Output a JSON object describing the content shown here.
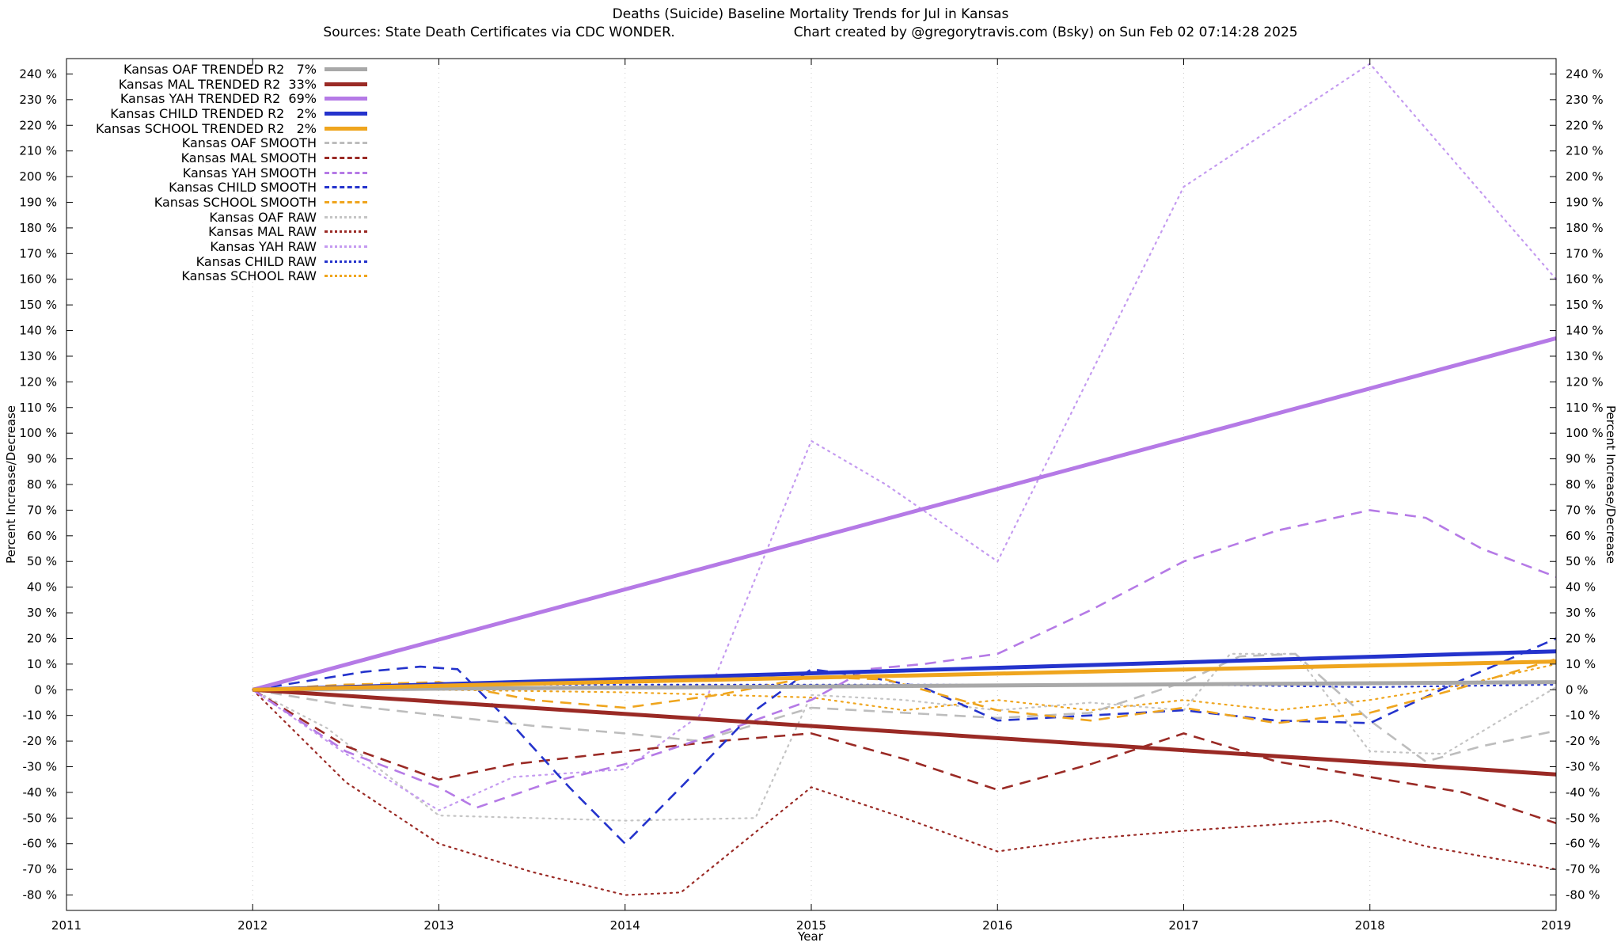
{
  "chart_data": {
    "type": "line",
    "title": "Deaths (Suicide)  Baseline Mortality Trends for Jul in Kansas",
    "subtitle_sources": "Sources: State Death Certificates via CDC WONDER.",
    "subtitle_credit": "Chart created by @gregorytravis.com (Bsky) on Sun Feb 02 07:14:28 2025",
    "xlabel": "Year",
    "ylabel": "Percent Increase/Decrease",
    "xlim": [
      2011,
      2019
    ],
    "ylim": [
      -86,
      246
    ],
    "xticks": [
      2011,
      2012,
      2013,
      2014,
      2015,
      2016,
      2017,
      2018,
      2019
    ],
    "yticks": [
      -80,
      -70,
      -60,
      -50,
      -40,
      -30,
      -20,
      -10,
      0,
      10,
      20,
      30,
      40,
      50,
      60,
      70,
      80,
      90,
      100,
      110,
      120,
      130,
      140,
      150,
      160,
      170,
      180,
      190,
      200,
      210,
      220,
      230,
      240
    ],
    "ytick_suffix": " %",
    "grid": "vertical-dotted",
    "legend_position": "top-left",
    "series": [
      {
        "name": "Kansas OAF TRENDED R2   7%",
        "group": "OAF",
        "role": "TRENDED",
        "color": "#a8a8a8",
        "points": [
          [
            2012,
            0
          ],
          [
            2019,
            3
          ]
        ]
      },
      {
        "name": "Kansas MAL TRENDED R2  33%",
        "group": "MAL",
        "role": "TRENDED",
        "color": "#9a2a25",
        "points": [
          [
            2012,
            0
          ],
          [
            2019,
            -33
          ]
        ]
      },
      {
        "name": "Kansas YAH TRENDED R2  69%",
        "group": "YAH",
        "role": "TRENDED",
        "color": "#b57ae6",
        "points": [
          [
            2012,
            0
          ],
          [
            2019,
            137
          ]
        ]
      },
      {
        "name": "Kansas CHILD TRENDED R2   2%",
        "group": "CHILD",
        "role": "TRENDED",
        "color": "#2433cc",
        "points": [
          [
            2012,
            0
          ],
          [
            2019,
            15
          ]
        ]
      },
      {
        "name": "Kansas SCHOOL TRENDED R2   2%",
        "group": "SCHOOL",
        "role": "TRENDED",
        "color": "#efa51e",
        "points": [
          [
            2012,
            0
          ],
          [
            2019,
            11
          ]
        ]
      },
      {
        "name": "Kansas OAF SMOOTH",
        "group": "OAF",
        "role": "SMOOTH",
        "color": "#bdbdbd",
        "points": [
          [
            2012,
            0
          ],
          [
            2012.5,
            -6
          ],
          [
            2013,
            -10
          ],
          [
            2013.5,
            -14
          ],
          [
            2014,
            -17
          ],
          [
            2014.4,
            -20
          ],
          [
            2015,
            -7
          ],
          [
            2015.5,
            -9
          ],
          [
            2016,
            -11
          ],
          [
            2016.5,
            -9
          ],
          [
            2017,
            3
          ],
          [
            2017.3,
            13
          ],
          [
            2017.6,
            14
          ],
          [
            2018,
            -12
          ],
          [
            2018.3,
            -28
          ],
          [
            2018.6,
            -22
          ],
          [
            2019,
            -16
          ]
        ]
      },
      {
        "name": "Kansas MAL SMOOTH",
        "group": "MAL",
        "role": "SMOOTH",
        "color": "#9a2a25",
        "points": [
          [
            2012,
            0
          ],
          [
            2012.5,
            -22
          ],
          [
            2013,
            -35
          ],
          [
            2013.4,
            -29
          ],
          [
            2014,
            -24
          ],
          [
            2014.5,
            -20
          ],
          [
            2015,
            -17
          ],
          [
            2015.5,
            -27
          ],
          [
            2016,
            -39
          ],
          [
            2016.5,
            -29
          ],
          [
            2017,
            -17
          ],
          [
            2017.5,
            -28
          ],
          [
            2018,
            -34
          ],
          [
            2018.5,
            -40
          ],
          [
            2019,
            -52
          ]
        ]
      },
      {
        "name": "Kansas YAH SMOOTH",
        "group": "YAH",
        "role": "SMOOTH",
        "color": "#b57ae6",
        "points": [
          [
            2012,
            0
          ],
          [
            2012.5,
            -24
          ],
          [
            2013,
            -38
          ],
          [
            2013.2,
            -46
          ],
          [
            2013.6,
            -36
          ],
          [
            2014,
            -29
          ],
          [
            2014.5,
            -17
          ],
          [
            2015,
            -4
          ],
          [
            2015.3,
            8
          ],
          [
            2015.6,
            10
          ],
          [
            2016,
            14
          ],
          [
            2016.5,
            31
          ],
          [
            2017,
            50
          ],
          [
            2017.5,
            62
          ],
          [
            2018,
            70
          ],
          [
            2018.3,
            67
          ],
          [
            2018.6,
            55
          ],
          [
            2019,
            44
          ]
        ]
      },
      {
        "name": "Kansas CHILD SMOOTH",
        "group": "CHILD",
        "role": "SMOOTH",
        "color": "#2433cc",
        "points": [
          [
            2012,
            0
          ],
          [
            2012.6,
            7
          ],
          [
            2012.9,
            9
          ],
          [
            2013.1,
            8
          ],
          [
            2013.4,
            -14
          ],
          [
            2013.7,
            -38
          ],
          [
            2014,
            -60
          ],
          [
            2014.3,
            -38
          ],
          [
            2014.7,
            -8
          ],
          [
            2015,
            8
          ],
          [
            2015.3,
            5
          ],
          [
            2015.6,
            1
          ],
          [
            2016,
            -12
          ],
          [
            2016.5,
            -10
          ],
          [
            2017,
            -8
          ],
          [
            2017.5,
            -12
          ],
          [
            2018,
            -13
          ],
          [
            2018.5,
            4
          ],
          [
            2019,
            20
          ]
        ]
      },
      {
        "name": "Kansas SCHOOL SMOOTH",
        "group": "SCHOOL",
        "role": "SMOOTH",
        "color": "#efa51e",
        "points": [
          [
            2012,
            0
          ],
          [
            2012.5,
            2
          ],
          [
            2013,
            3
          ],
          [
            2013.5,
            -4
          ],
          [
            2014,
            -7
          ],
          [
            2014.5,
            -2
          ],
          [
            2015,
            5
          ],
          [
            2015.4,
            4
          ],
          [
            2016,
            -8
          ],
          [
            2016.5,
            -12
          ],
          [
            2017,
            -7
          ],
          [
            2017.5,
            -13
          ],
          [
            2018,
            -9
          ],
          [
            2018.5,
            1
          ],
          [
            2019,
            12
          ]
        ]
      },
      {
        "name": "Kansas OAF RAW",
        "group": "OAF",
        "role": "RAW",
        "color": "#c4c4c4",
        "points": [
          [
            2012,
            0
          ],
          [
            2012.4,
            -15
          ],
          [
            2013,
            -49
          ],
          [
            2013.5,
            -50
          ],
          [
            2014,
            -51
          ],
          [
            2014.7,
            -50
          ],
          [
            2015,
            -2
          ],
          [
            2015.5,
            -4
          ],
          [
            2016,
            -8
          ],
          [
            2016.5,
            -5
          ],
          [
            2017,
            -8
          ],
          [
            2017.25,
            14
          ],
          [
            2017.6,
            14
          ],
          [
            2018,
            -24
          ],
          [
            2018.4,
            -25
          ],
          [
            2018.7,
            -12
          ],
          [
            2019,
            1
          ]
        ]
      },
      {
        "name": "Kansas MAL RAW",
        "group": "MAL",
        "role": "RAW",
        "color": "#9a2a25",
        "points": [
          [
            2012,
            0
          ],
          [
            2012.5,
            -36
          ],
          [
            2013,
            -60
          ],
          [
            2013.5,
            -71
          ],
          [
            2014,
            -80
          ],
          [
            2014.3,
            -79
          ],
          [
            2015,
            -38
          ],
          [
            2015.5,
            -50
          ],
          [
            2016,
            -63
          ],
          [
            2016.5,
            -58
          ],
          [
            2017,
            -55
          ],
          [
            2017.8,
            -51
          ],
          [
            2018.3,
            -61
          ],
          [
            2019,
            -70
          ]
        ]
      },
      {
        "name": "Kansas YAH RAW",
        "group": "YAH",
        "role": "RAW",
        "color": "#c49af0",
        "points": [
          [
            2012,
            0
          ],
          [
            2012.5,
            -25
          ],
          [
            2013,
            -47
          ],
          [
            2013.4,
            -34
          ],
          [
            2014,
            -31
          ],
          [
            2014.4,
            -10
          ],
          [
            2015,
            97
          ],
          [
            2015.4,
            80
          ],
          [
            2016,
            50
          ],
          [
            2017,
            196
          ],
          [
            2018,
            244
          ],
          [
            2019,
            160
          ]
        ]
      },
      {
        "name": "Kansas CHILD RAW",
        "group": "CHILD",
        "role": "RAW",
        "color": "#2433cc",
        "points": [
          [
            2012,
            0
          ],
          [
            2012.5,
            1
          ],
          [
            2013,
            2
          ],
          [
            2014,
            2
          ],
          [
            2015,
            2
          ],
          [
            2016,
            2
          ],
          [
            2017,
            2
          ],
          [
            2018,
            1
          ],
          [
            2019,
            2
          ]
        ]
      },
      {
        "name": "Kansas SCHOOL RAW",
        "group": "SCHOOL",
        "role": "RAW",
        "color": "#efa51e",
        "points": [
          [
            2012,
            0
          ],
          [
            2013,
            0
          ],
          [
            2014,
            -1
          ],
          [
            2015,
            -3
          ],
          [
            2015.5,
            -8
          ],
          [
            2016,
            -4
          ],
          [
            2016.5,
            -8
          ],
          [
            2017,
            -4
          ],
          [
            2017.5,
            -8
          ],
          [
            2018,
            -4
          ],
          [
            2018.5,
            2
          ],
          [
            2019,
            10
          ]
        ]
      }
    ]
  }
}
